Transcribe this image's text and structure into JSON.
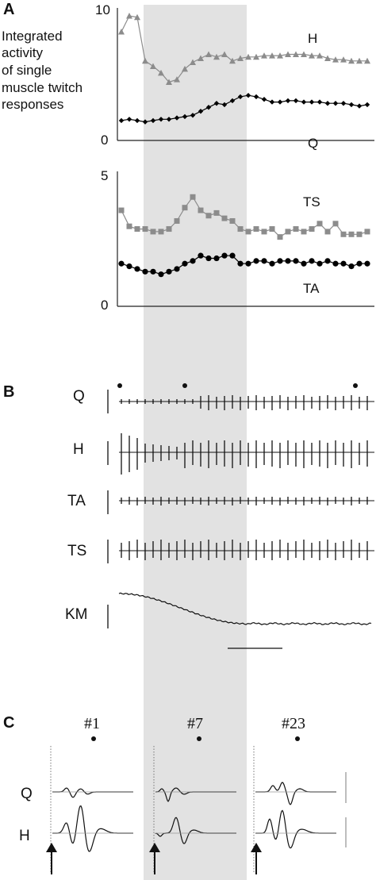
{
  "panels": {
    "a": "A",
    "b": "B",
    "c": "C"
  },
  "panel_a": {
    "description_lines": [
      "Integrated",
      "activity",
      "of single",
      "muscle twitch",
      "responses"
    ]
  },
  "panel_b": {
    "channel_labels": [
      "Q",
      "H",
      "TA",
      "TS",
      "KM"
    ]
  },
  "panel_c": {
    "trial_labels": [
      "#1",
      "#7",
      "#23"
    ],
    "row_labels": [
      "Q",
      "H"
    ]
  },
  "colors": {
    "shade": "#e2e2e2",
    "series_gray": "#8c8c8c",
    "series_black": "#000000",
    "trace": "#111111"
  },
  "chart_data": [
    {
      "type": "line",
      "panel": "A-top",
      "ylim": [
        0,
        10
      ],
      "yticks": [
        "0",
        "10"
      ],
      "x": [
        1,
        2,
        3,
        4,
        5,
        6,
        7,
        8,
        9,
        10,
        11,
        12,
        13,
        14,
        15,
        16,
        17,
        18,
        19,
        20,
        21,
        22,
        23,
        24,
        25,
        26,
        27,
        28,
        29,
        30,
        31,
        32
      ],
      "series": [
        {
          "name": "H",
          "marker": "triangle",
          "color": "#8c8c8c",
          "values": [
            8.2,
            9.4,
            9.3,
            6.0,
            5.6,
            5.1,
            4.4,
            4.6,
            5.4,
            5.9,
            6.2,
            6.5,
            6.3,
            6.5,
            6.0,
            6.2,
            6.3,
            6.3,
            6.4,
            6.4,
            6.4,
            6.5,
            6.5,
            6.5,
            6.4,
            6.4,
            6.2,
            6.1,
            6.1,
            6.0,
            6.0,
            6.0
          ]
        },
        {
          "name": "Q",
          "marker": "diamond",
          "color": "#000000",
          "values": [
            1.5,
            1.6,
            1.5,
            1.4,
            1.5,
            1.6,
            1.6,
            1.7,
            1.8,
            1.9,
            2.2,
            2.5,
            2.8,
            2.7,
            3.0,
            3.3,
            3.4,
            3.3,
            3.1,
            2.9,
            2.9,
            3.0,
            3.0,
            2.9,
            2.9,
            2.9,
            2.8,
            2.8,
            2.8,
            2.7,
            2.6,
            2.7
          ]
        }
      ]
    },
    {
      "type": "line",
      "panel": "A-bottom",
      "ylim": [
        0,
        5
      ],
      "yticks": [
        "0",
        "5"
      ],
      "x": [
        1,
        2,
        3,
        4,
        5,
        6,
        7,
        8,
        9,
        10,
        11,
        12,
        13,
        14,
        15,
        16,
        17,
        18,
        19,
        20,
        21,
        22,
        23,
        24,
        25,
        26,
        27,
        28,
        29,
        30,
        31,
        32
      ],
      "series": [
        {
          "name": "TS",
          "marker": "square",
          "color": "#8c8c8c",
          "values": [
            3.6,
            3.0,
            2.9,
            2.9,
            2.8,
            2.8,
            2.9,
            3.2,
            3.7,
            4.1,
            3.6,
            3.4,
            3.5,
            3.3,
            3.2,
            2.9,
            2.8,
            2.9,
            2.8,
            2.9,
            2.6,
            2.8,
            2.9,
            2.8,
            2.9,
            3.1,
            2.8,
            3.1,
            2.7,
            2.7,
            2.7,
            2.8
          ]
        },
        {
          "name": "TA",
          "marker": "circle",
          "color": "#000000",
          "values": [
            1.6,
            1.5,
            1.4,
            1.3,
            1.3,
            1.2,
            1.3,
            1.4,
            1.6,
            1.7,
            1.9,
            1.8,
            1.8,
            1.9,
            1.9,
            1.6,
            1.6,
            1.7,
            1.7,
            1.6,
            1.7,
            1.7,
            1.7,
            1.6,
            1.7,
            1.6,
            1.7,
            1.6,
            1.6,
            1.5,
            1.6,
            1.6
          ]
        }
      ]
    }
  ]
}
